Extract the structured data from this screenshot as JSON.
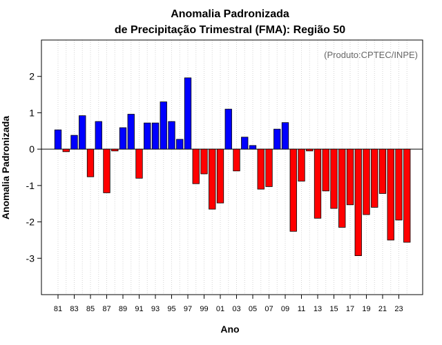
{
  "chart_data": {
    "type": "bar",
    "title": "Anomalia Padronizada",
    "subtitle": "de Precipitação Trimestral (FMA): Região 50",
    "xlabel": "Ano",
    "ylabel": "Anomalia Padronizada",
    "annotation": "(Produto:CPTEC/INPE)",
    "ylim": [
      -4,
      3
    ],
    "yticks": [
      -3,
      -2,
      -1,
      0,
      1,
      2
    ],
    "ytick_labels": [
      "-3",
      "-2",
      "-1",
      "0",
      "1",
      "2"
    ],
    "grid": true,
    "positive_color": "#0000ff",
    "negative_color": "#ff0000",
    "categories": [
      "81",
      "82",
      "83",
      "84",
      "85",
      "86",
      "87",
      "88",
      "89",
      "90",
      "91",
      "92",
      "93",
      "94",
      "95",
      "96",
      "97",
      "98",
      "99",
      "00",
      "01",
      "02",
      "03",
      "04",
      "05",
      "06",
      "07",
      "08",
      "09",
      "10",
      "11",
      "12",
      "13",
      "14",
      "15",
      "16",
      "17",
      "18",
      "19",
      "20",
      "21",
      "22",
      "23",
      "24"
    ],
    "xtick_labels": [
      "81",
      "83",
      "85",
      "87",
      "89",
      "91",
      "93",
      "95",
      "97",
      "99",
      "01",
      "03",
      "05",
      "07",
      "09",
      "11",
      "13",
      "15",
      "17",
      "19",
      "21",
      "23"
    ],
    "values": [
      0.53,
      -0.07,
      0.38,
      0.92,
      -0.76,
      0.76,
      -1.2,
      -0.05,
      0.59,
      0.96,
      -0.8,
      0.72,
      0.72,
      1.3,
      0.76,
      0.27,
      1.96,
      -0.95,
      -0.68,
      -1.65,
      -1.48,
      1.1,
      -0.6,
      0.33,
      0.1,
      -1.1,
      -1.03,
      0.55,
      0.73,
      -2.26,
      -0.88,
      -0.05,
      -1.9,
      -1.15,
      -1.63,
      -2.15,
      -1.53,
      -2.93,
      -1.8,
      -1.6,
      -1.22,
      -2.5,
      -1.95,
      -2.56
    ]
  }
}
